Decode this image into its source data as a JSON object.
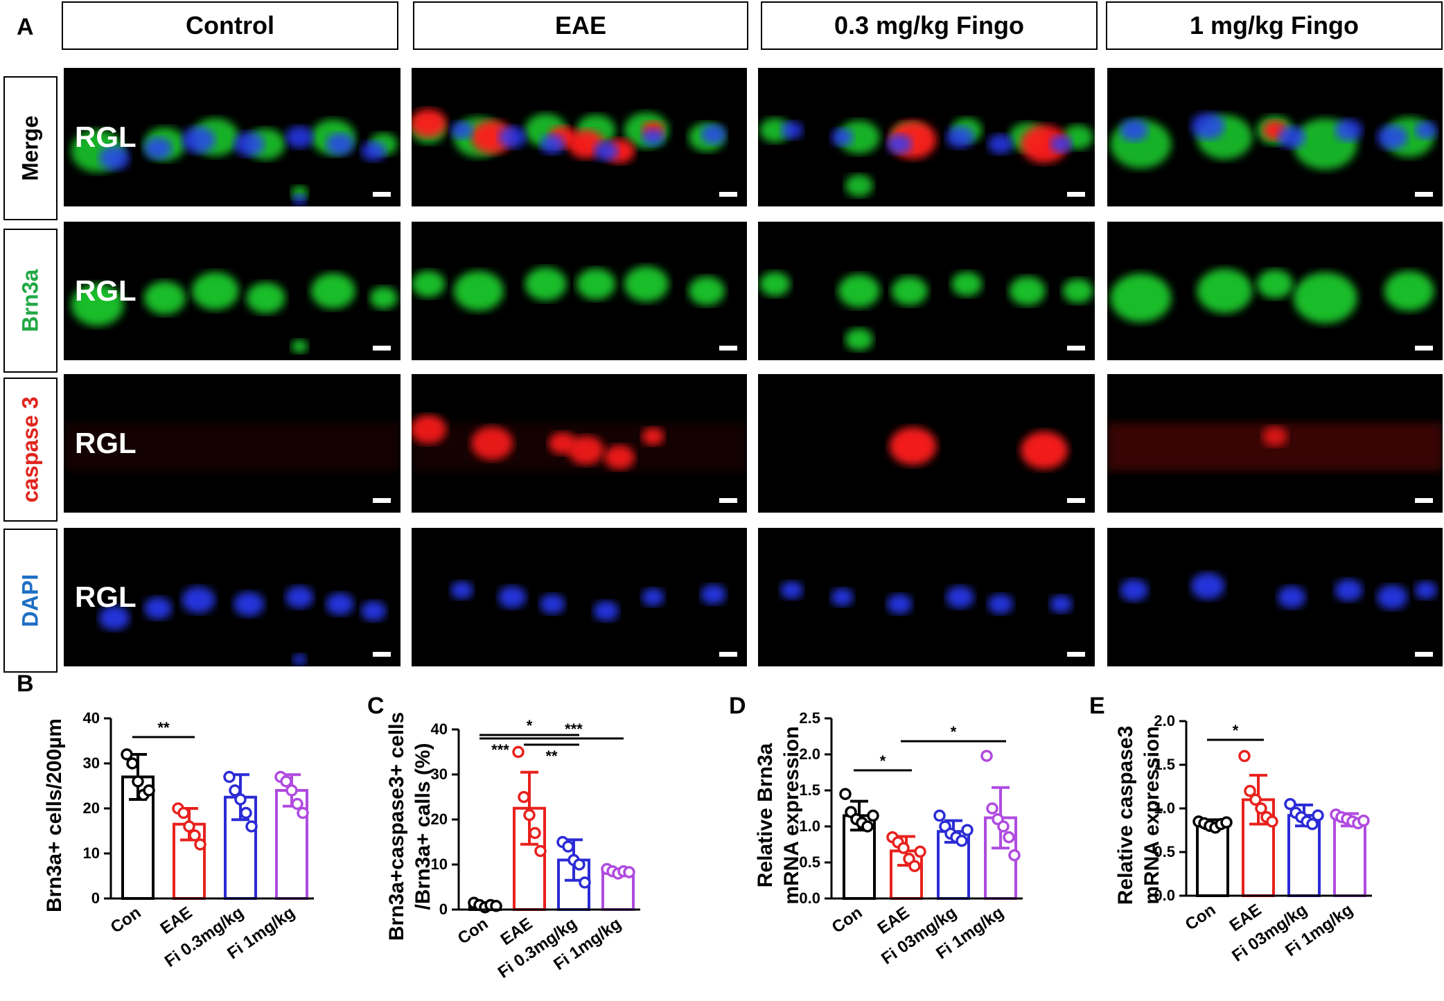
{
  "panelA": {
    "letter": "A",
    "columns": [
      "Control",
      "EAE",
      "0.3 mg/kg Fingo",
      "1 mg/kg Fingo"
    ],
    "rows": [
      {
        "label": "Merge",
        "color": "#000000"
      },
      {
        "label": "Brn3a",
        "color": "#22a845"
      },
      {
        "label": "caspase 3",
        "color": "#e0241d"
      },
      {
        "label": "DAPI",
        "color": "#1e6fc4"
      }
    ],
    "region_label": "RGL"
  },
  "colors": {
    "con": "#000000",
    "eae": "#e8211d",
    "fi03": "#2b2bd6",
    "fi1": "#b04be0"
  },
  "chart_data": [
    {
      "letter": "B",
      "type": "bar",
      "ylabel": "Brn3a+ cells/200µm",
      "ylim": [
        0,
        40
      ],
      "yticks": [
        "0",
        "10",
        "20",
        "30",
        "40"
      ],
      "categories": [
        "Con",
        "EAE",
        "Fi 0.3mg/kg",
        "Fi 1mg/kg"
      ],
      "values": [
        27,
        16.5,
        22.5,
        24
      ],
      "errors": [
        5,
        3.5,
        5,
        3.5
      ],
      "points": [
        [
          32,
          30,
          26,
          23,
          24
        ],
        [
          20,
          19,
          16,
          14,
          12
        ],
        [
          27,
          24,
          22,
          19,
          16
        ],
        [
          27,
          26,
          24,
          21,
          19
        ]
      ],
      "significance": [
        {
          "from": 0,
          "to": 1,
          "label": "**"
        }
      ]
    },
    {
      "letter": "C",
      "type": "bar",
      "ylabel": "Brn3a+caspase3+ cells\n/Brn3a+ calls (%)",
      "ylim": [
        0,
        40
      ],
      "yticks": [
        "0",
        "10",
        "20",
        "30",
        "40"
      ],
      "categories": [
        "Con",
        "EAE",
        "Fi 0.3mg/kg",
        "Fi 1mg/kg"
      ],
      "values": [
        1,
        22.5,
        11,
        8.5
      ],
      "errors": [
        0.5,
        8,
        4.5,
        0.5
      ],
      "points": [
        [
          1.5,
          1,
          0.5,
          1,
          0.8
        ],
        [
          35,
          25,
          21,
          17,
          13
        ],
        [
          15,
          14,
          11,
          10,
          6
        ],
        [
          9,
          8.5,
          8,
          8.5,
          8.3
        ]
      ],
      "significance": [
        {
          "from": 0,
          "to": 1,
          "label": "***"
        },
        {
          "from": 0,
          "to": 2,
          "label": "*"
        },
        {
          "from": 1,
          "to": 2,
          "label": "**"
        },
        {
          "from": 1,
          "to": 3,
          "label": "***"
        }
      ]
    },
    {
      "letter": "D",
      "type": "bar",
      "ylabel": "Relative Brn3a\nmRNA expression",
      "ylim": [
        0,
        2.5
      ],
      "yticks": [
        "0.0",
        "0.5",
        "1.0",
        "1.5",
        "2.0",
        "2.5"
      ],
      "categories": [
        "Con",
        "EAE",
        "Fi 03mg/kg",
        "Fi 1mg/kg"
      ],
      "values": [
        1.15,
        0.66,
        0.93,
        1.12
      ],
      "errors": [
        0.2,
        0.2,
        0.15,
        0.42
      ],
      "points": [
        [
          1.45,
          1.2,
          1.1,
          1.05,
          1.0,
          1.15
        ],
        [
          0.85,
          0.78,
          0.7,
          0.55,
          0.45,
          0.65
        ],
        [
          1.15,
          1.0,
          0.9,
          0.85,
          0.8,
          0.95
        ],
        [
          1.98,
          1.25,
          1.1,
          1.0,
          0.85,
          0.6
        ]
      ],
      "significance": [
        {
          "from": 0,
          "to": 1,
          "label": "*"
        },
        {
          "from": 1,
          "to": 3,
          "label": "*"
        }
      ]
    },
    {
      "letter": "E",
      "type": "bar",
      "ylabel": "Relative caspase3\nmRNA expression",
      "ylim": [
        0,
        2.0
      ],
      "yticks": [
        "0.0",
        "0.5",
        "1.0",
        "1.5",
        "2.0"
      ],
      "categories": [
        "Con",
        "EAE",
        "Fi 03mg/kg",
        "Fi 1mg/kg"
      ],
      "values": [
        0.82,
        1.1,
        0.92,
        0.87
      ],
      "errors": [
        0.05,
        0.28,
        0.12,
        0.07
      ],
      "points": [
        [
          0.85,
          0.83,
          0.8,
          0.78,
          0.82,
          0.84
        ],
        [
          1.6,
          1.2,
          1.1,
          1.0,
          0.9,
          0.85
        ],
        [
          1.05,
          0.95,
          0.9,
          0.85,
          0.82,
          0.92
        ],
        [
          0.93,
          0.9,
          0.88,
          0.85,
          0.83,
          0.86
        ]
      ],
      "significance": [
        {
          "from": 0,
          "to": 1,
          "label": "*"
        }
      ]
    }
  ]
}
